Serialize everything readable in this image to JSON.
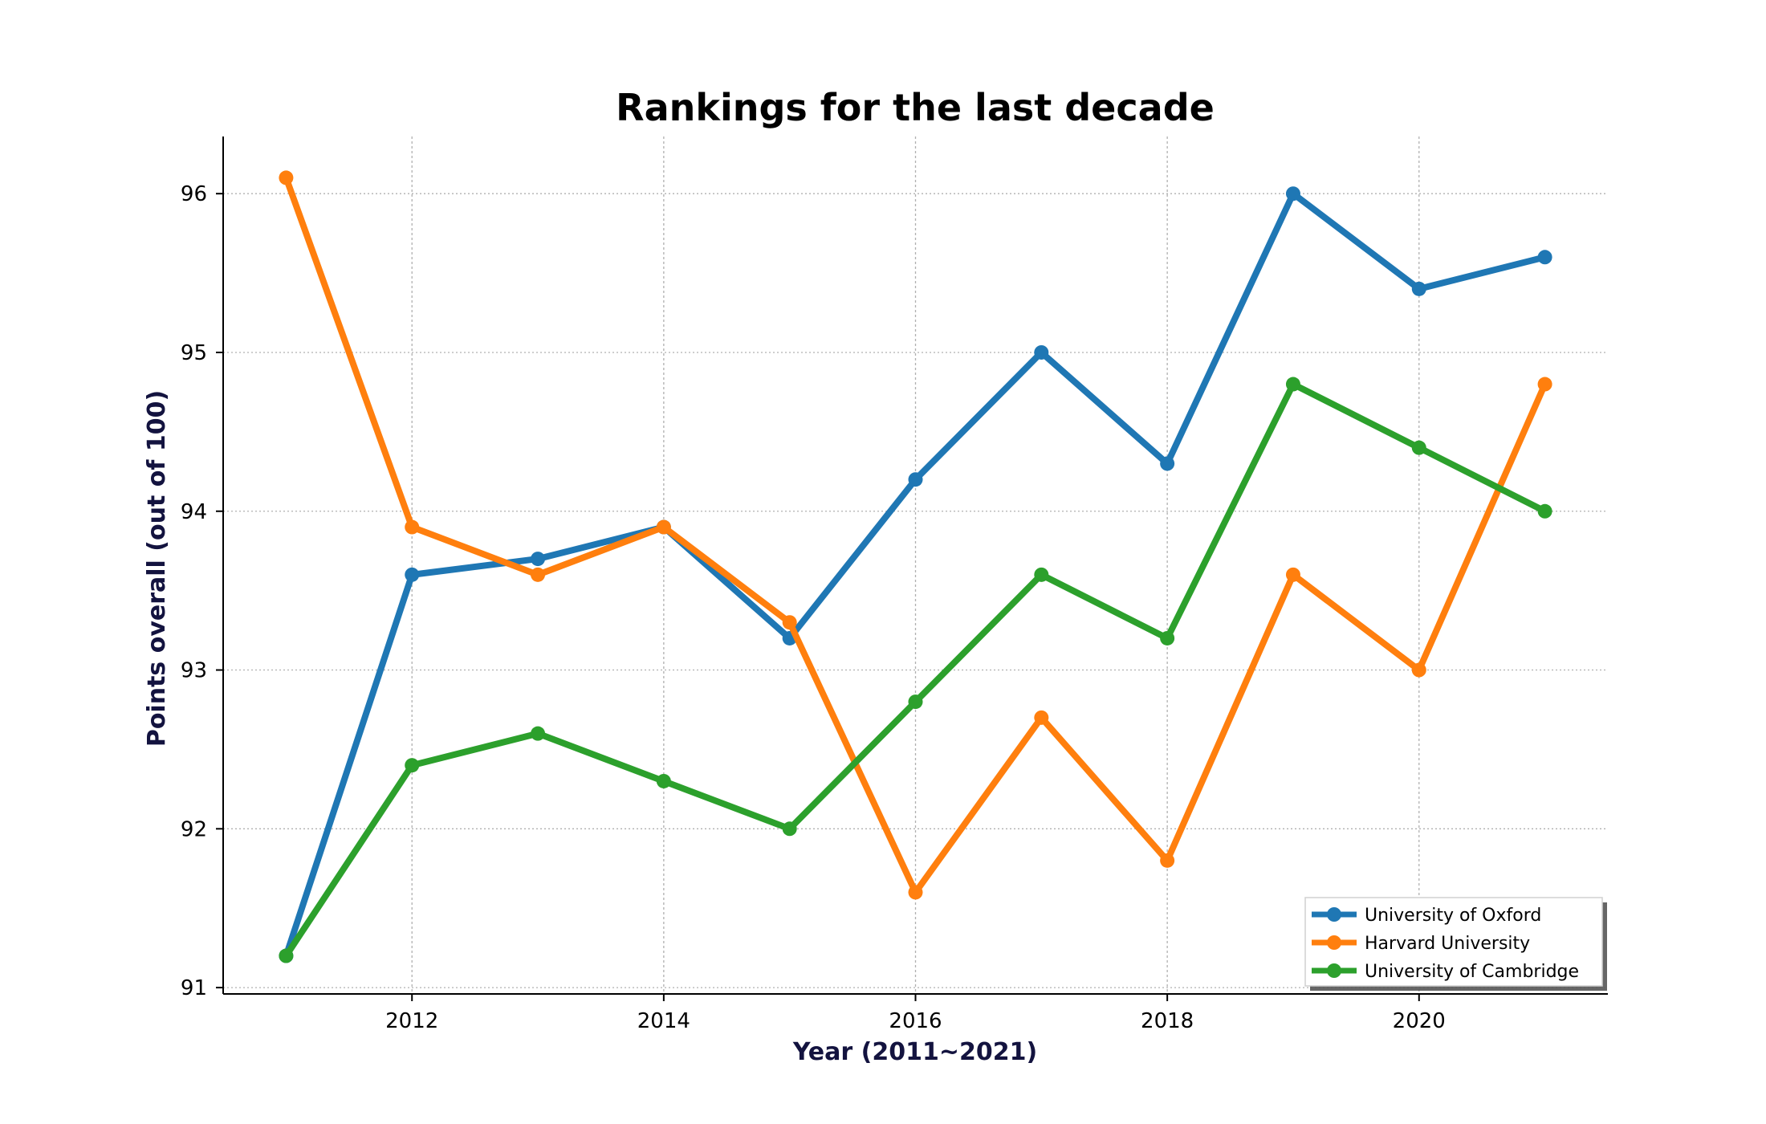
{
  "chart_data": {
    "type": "line",
    "title": "Rankings for the last decade",
    "xlabel": "Year (2011~2021)",
    "ylabel": "Points overall (out of 100)",
    "x": [
      2011,
      2012,
      2013,
      2014,
      2015,
      2016,
      2017,
      2018,
      2019,
      2020,
      2021
    ],
    "xlim": [
      2010.5,
      2021.5
    ],
    "ylim": [
      90.96,
      96.36
    ],
    "x_ticks": [
      2012,
      2014,
      2016,
      2018,
      2020
    ],
    "y_ticks": [
      91,
      92,
      93,
      94,
      95,
      96
    ],
    "grid": true,
    "legend_position": "bottom-right",
    "series": [
      {
        "name": "University of Oxford",
        "color": "#1f77b4",
        "values": [
          91.2,
          93.6,
          93.7,
          93.9,
          93.2,
          94.2,
          95.0,
          94.3,
          96.0,
          95.4,
          95.6
        ]
      },
      {
        "name": "Harvard University",
        "color": "#ff7f0e",
        "values": [
          96.1,
          93.9,
          93.6,
          93.9,
          93.3,
          91.6,
          92.7,
          91.8,
          93.6,
          93.0,
          94.8
        ]
      },
      {
        "name": "University of Cambridge",
        "color": "#2ca02c",
        "values": [
          91.2,
          92.4,
          92.6,
          92.3,
          92.0,
          92.8,
          93.6,
          93.2,
          94.8,
          94.4,
          94.0
        ]
      }
    ]
  }
}
